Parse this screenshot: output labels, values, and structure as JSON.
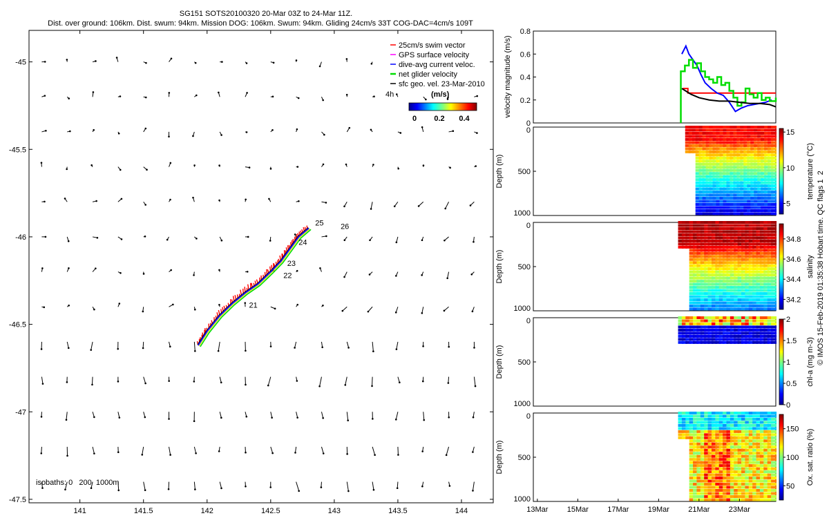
{
  "header": {
    "title_line1": "SG151 SOTS20100320 20-Mar 03Z to 24-Mar 11Z.",
    "title_line2": "Dist. over ground: 106km. Dist. swum: 94km. Mission DOG: 106km. Swum: 94km. Gliding 24cm/s 33T COG-DAC=4cm/s 109T"
  },
  "footer": {
    "credit": "© IMOS 15-Feb-2019 01:35:38 Hobart time. QC flags 1  2"
  },
  "colors": {
    "swim": "#ff0000",
    "gps": "#ff00ff",
    "dac": "#0000ff",
    "net": "#00dd00",
    "geo": "#000000"
  },
  "chart_data": [
    {
      "id": "map",
      "type": "scatter",
      "title": "",
      "xlabel": "",
      "ylabel": "",
      "xlim": [
        140.6,
        144.25
      ],
      "ylim": [
        -47.52,
        -44.82
      ],
      "xticks": [
        141,
        141.5,
        142,
        142.5,
        143,
        143.5,
        144
      ],
      "xtick_labels": [
        "141",
        "141.5",
        "142",
        "142.5",
        "143",
        "143.5",
        "144"
      ],
      "yticks": [
        -45,
        -45.5,
        -46,
        -46.5,
        -47,
        -47.5
      ],
      "ytick_labels": [
        "-45",
        "-45.5",
        "-46",
        "-46.5",
        "-47",
        "-47.5"
      ],
      "legend": {
        "position": "top-right",
        "entries": [
          "25cm/s swim vector",
          "GPS surface velocity",
          "dive-avg current veloc.",
          "net glider velocity",
          "sfc geo. vel. 23-Mar-2010"
        ]
      },
      "time_marker_label": "4h",
      "colorbar": {
        "label": "(m/s)",
        "ticks": [
          "0",
          "0.2",
          "0.4"
        ],
        "range": [
          0,
          0.5
        ]
      },
      "isobaths_label": "isobaths: 0   200  1000m",
      "track": [
        [
          141.93,
          -46.62
        ],
        [
          142.0,
          -46.54
        ],
        [
          142.1,
          -46.45
        ],
        [
          142.2,
          -46.38
        ],
        [
          142.3,
          -46.32
        ],
        [
          142.4,
          -46.27
        ],
        [
          142.5,
          -46.2
        ],
        [
          142.58,
          -46.14
        ],
        [
          142.65,
          -46.07
        ],
        [
          142.72,
          -46.0
        ],
        [
          142.8,
          -45.95
        ]
      ],
      "day_labels": [
        {
          "label": "21",
          "lon": 142.33,
          "lat": -46.39
        },
        {
          "label": "22",
          "lon": 142.6,
          "lat": -46.22
        },
        {
          "label": "23",
          "lon": 142.63,
          "lat": -46.15
        },
        {
          "label": "24",
          "lon": 142.72,
          "lat": -46.03
        },
        {
          "label": "25",
          "lon": 142.85,
          "lat": -45.92
        },
        {
          "label": "26",
          "lon": 143.05,
          "lat": -45.94
        }
      ],
      "vector_grid": {
        "lon_start": 140.7,
        "lon_step": 0.2,
        "n_lon": 18,
        "lat_start": -45.0,
        "lat_step": -0.2,
        "n_lat": 13
      }
    },
    {
      "id": "velocity",
      "type": "line",
      "ylabel": "velocity magnitude (m/s)",
      "ylim": [
        0,
        0.8
      ],
      "yticks": [
        0,
        0.2,
        0.4,
        0.6,
        0.8
      ],
      "ytick_labels": [
        "0",
        "0.2",
        "0.4",
        "0.6",
        "0.8"
      ],
      "xlim_day": [
        12.8,
        24.8
      ],
      "series": [
        {
          "name": "swim",
          "color": "#ff0000",
          "x": [
            20.2,
            20.45,
            20.45,
            24.8
          ],
          "y": [
            0.3,
            0.3,
            0.26,
            0.26
          ]
        },
        {
          "name": "dac",
          "color": "#0000ff",
          "x": [
            20.15,
            20.35,
            20.5,
            20.7,
            20.9,
            21.1,
            21.3,
            21.6,
            21.9,
            22.2,
            22.5,
            22.8,
            23.1,
            23.4,
            23.7,
            24.0,
            24.3,
            24.6
          ],
          "y": [
            0.6,
            0.67,
            0.6,
            0.55,
            0.5,
            0.42,
            0.35,
            0.3,
            0.26,
            0.24,
            0.18,
            0.1,
            0.13,
            0.15,
            0.16,
            0.17,
            0.18,
            0.2
          ]
        },
        {
          "name": "net",
          "color": "#00dd00",
          "x": [
            20.1,
            20.3,
            20.5,
            20.7,
            20.9,
            21.1,
            21.3,
            21.5,
            21.7,
            21.9,
            22.1,
            22.3,
            22.5,
            22.7,
            22.9,
            23.1,
            23.3,
            23.5,
            23.7,
            23.9,
            24.1,
            24.3,
            24.5,
            24.8
          ],
          "y": [
            0.45,
            0.5,
            0.55,
            0.48,
            0.52,
            0.45,
            0.4,
            0.38,
            0.35,
            0.4,
            0.33,
            0.35,
            0.28,
            0.22,
            0.15,
            0.18,
            0.3,
            0.25,
            0.22,
            0.26,
            0.2,
            0.22,
            0.19,
            0.22
          ]
        },
        {
          "name": "geo",
          "color": "#000000",
          "x": [
            20.15,
            20.6,
            21.0,
            21.5,
            22.0,
            22.5,
            23.0,
            23.5,
            24.0,
            24.5,
            24.8
          ],
          "y": [
            0.3,
            0.25,
            0.22,
            0.2,
            0.19,
            0.19,
            0.18,
            0.17,
            0.17,
            0.16,
            0.14
          ]
        }
      ]
    },
    {
      "id": "temperature",
      "type": "heatmap",
      "ylabel": "Depth (m)",
      "cbar_label": "temperature (°C)",
      "ylim": [
        1000,
        0
      ],
      "yticks": [
        0,
        500,
        1000
      ],
      "ytick_labels": [
        "0",
        "500",
        "1000"
      ],
      "cbar_ticks": [
        5,
        10,
        15
      ],
      "cbar_tick_labels": [
        "5",
        "10",
        "15"
      ],
      "crange": [
        3.5,
        15.5
      ],
      "profile_start_day": 20.45,
      "profile_end_day": 24.7,
      "surface": 14,
      "deep": 4.5,
      "mld": 150,
      "max_depth": 1000,
      "max_depth_start": 300
    },
    {
      "id": "salinity",
      "type": "heatmap",
      "ylabel": "Depth (m)",
      "cbar_label": "salinity",
      "ylim": [
        1000,
        0
      ],
      "yticks": [
        0,
        500,
        1000
      ],
      "ytick_labels": [
        "0",
        "500",
        "1000"
      ],
      "cbar_ticks": [
        34.2,
        34.4,
        34.6,
        34.8
      ],
      "cbar_tick_labels": [
        "34.2",
        "34.4",
        "34.6",
        "34.8"
      ],
      "crange": [
        34.1,
        34.95
      ],
      "profile_start_day": 20.1,
      "profile_end_day": 24.7,
      "surface": 34.9,
      "deep": 34.3,
      "mld": 250,
      "max_depth": 1000,
      "max_depth_start": 300
    },
    {
      "id": "chla",
      "type": "heatmap",
      "ylabel": "Depth (m)",
      "cbar_label": "chl-a (mg m-3)",
      "ylim": [
        1000,
        0
      ],
      "yticks": [
        0,
        500,
        1000
      ],
      "ytick_labels": [
        "0",
        "500",
        "1000"
      ],
      "cbar_ticks": [
        0,
        0.5,
        1,
        1.5,
        2
      ],
      "cbar_tick_labels": [
        "0",
        "0.5",
        "1",
        "1.5",
        "2"
      ],
      "crange": [
        0,
        2
      ],
      "profile_start_day": 20.1,
      "profile_end_day": 24.7,
      "surface": 1.4,
      "deep": 0.0,
      "mld": 80,
      "max_depth": 280,
      "max_depth_start": 280
    },
    {
      "id": "oxygen",
      "type": "heatmap",
      "ylabel": "Depth (m)",
      "cbar_label": "Ox. sat. ratio (%)",
      "ylim": [
        1000,
        0
      ],
      "yticks": [
        0,
        500,
        1000
      ],
      "ytick_labels": [
        "0",
        "500",
        "1000"
      ],
      "cbar_ticks": [
        50,
        100,
        150
      ],
      "cbar_tick_labels": [
        "50",
        "100",
        "150"
      ],
      "crange": [
        25,
        175
      ],
      "profile_start_day": 20.1,
      "profile_end_day": 24.7,
      "surface": 80,
      "deep": 120,
      "mld": 200,
      "max_depth": 1000,
      "max_depth_start": 300,
      "xticks_day": [
        13,
        15,
        17,
        19,
        21,
        23
      ],
      "xtick_labels": [
        "13Mar",
        "15Mar",
        "17Mar",
        "19Mar",
        "21Mar",
        "23Mar"
      ]
    }
  ]
}
